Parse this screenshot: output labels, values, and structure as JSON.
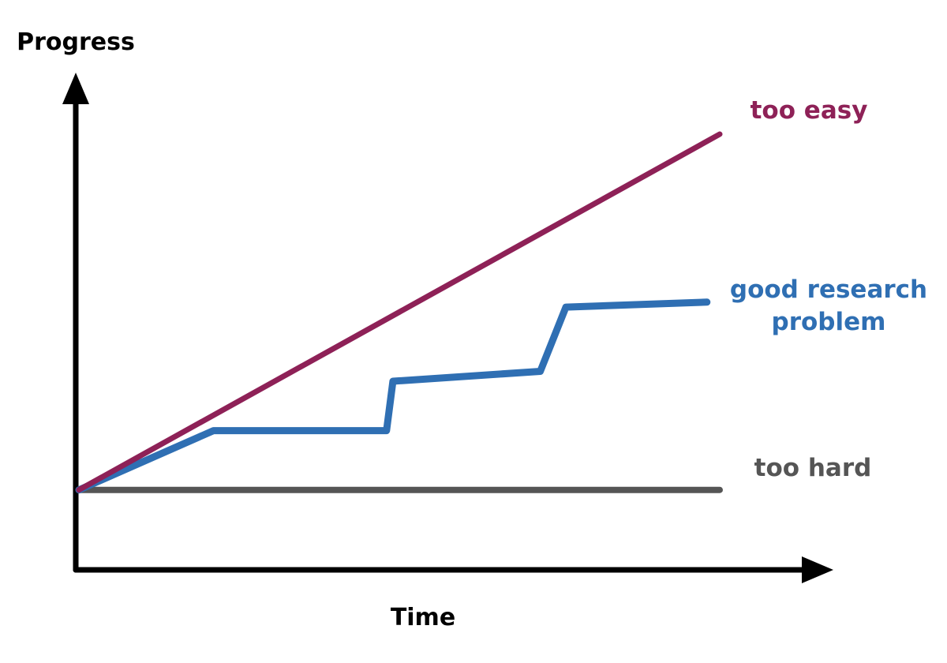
{
  "chart_data": {
    "type": "line",
    "xlabel": "Time",
    "ylabel": "Progress",
    "grid": false,
    "legend": "none",
    "xlim": [
      0,
      100
    ],
    "ylim": [
      0,
      100
    ],
    "series": [
      {
        "name": "too easy",
        "color": "#8e2157",
        "points": [
          [
            0,
            28
          ],
          [
            100,
            100
          ]
        ]
      },
      {
        "name": "good research problem",
        "color": "#2f6fb3",
        "points": [
          [
            0,
            28
          ],
          [
            21,
            40
          ],
          [
            48,
            40
          ],
          [
            49,
            50
          ],
          [
            72,
            52
          ],
          [
            76,
            65
          ],
          [
            98,
            66
          ]
        ]
      },
      {
        "name": "too hard",
        "color": "#555555",
        "points": [
          [
            0,
            28
          ],
          [
            100,
            28
          ]
        ]
      }
    ]
  }
}
